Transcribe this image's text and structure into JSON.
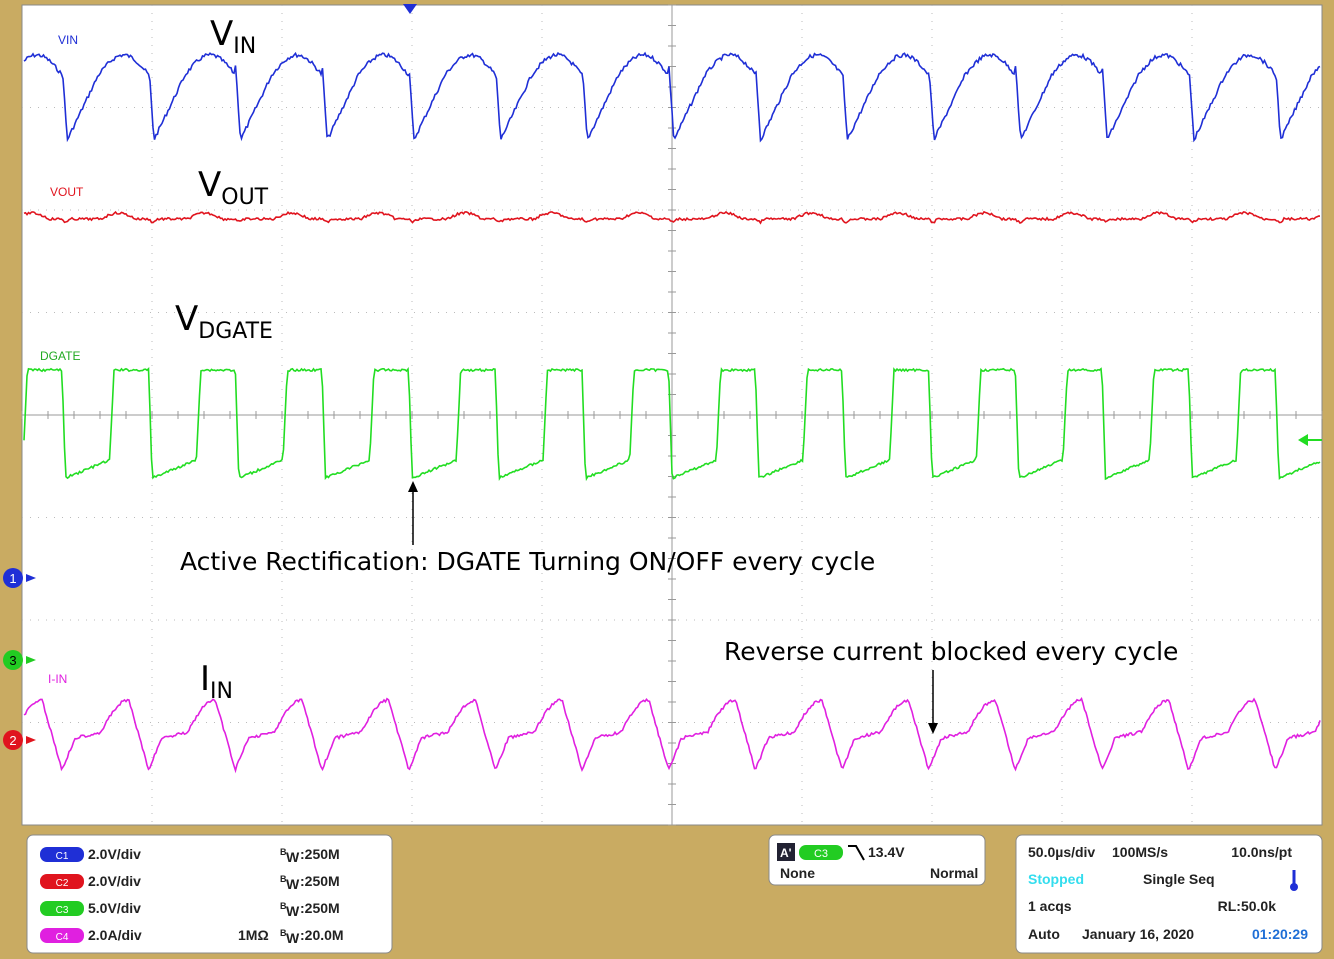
{
  "traces": [
    {
      "label": "VIN",
      "color": "#1f2fd6",
      "big": {
        "main": "V",
        "sub": "IN"
      }
    },
    {
      "label": "VOUT",
      "color": "#e0141e",
      "big": {
        "main": "V",
        "sub": "OUT"
      }
    },
    {
      "label": "DGATE",
      "color": "#22dd22",
      "big": {
        "main": "V",
        "sub": "DGATE"
      }
    },
    {
      "label": "I-IN",
      "color": "#e020e0",
      "big": {
        "main": "I",
        "sub": "IN"
      }
    }
  ],
  "markers": [
    "1",
    "3",
    "2"
  ],
  "annotations": [
    "Active Rectification: DGATE Turning ON/OFF every cycle",
    "Reverse current blocked every cycle"
  ],
  "bw_symbol": {
    "main": "B",
    "sub": "W"
  },
  "channels": [
    {
      "name": "C1",
      "scale": "2.0V/div",
      "impedance": null,
      "bandwidth": ":250M"
    },
    {
      "name": "C2",
      "scale": "2.0V/div",
      "impedance": null,
      "bandwidth": ":250M"
    },
    {
      "name": "C3",
      "scale": "5.0V/div",
      "impedance": null,
      "bandwidth": ":250M"
    },
    {
      "name": "C4",
      "scale": "2.0A/div",
      "impedance": "1MΩ",
      "bandwidth": ":20.0M"
    }
  ],
  "trigger": {
    "id": "A'",
    "source": "C3",
    "level": "13.4V",
    "coupling": "None",
    "mode": "Normal"
  },
  "timebase": {
    "scale": "50.0µs/div",
    "rate": "100MS/s",
    "resolution": "10.0ns/pt",
    "state": "Stopped",
    "acq_mode": "Single Seq",
    "acqs": "1 acqs",
    "record": "RL:50.0k",
    "trigger_mode": "Auto",
    "date": "January 16, 2020",
    "time": "01:20:29"
  }
}
